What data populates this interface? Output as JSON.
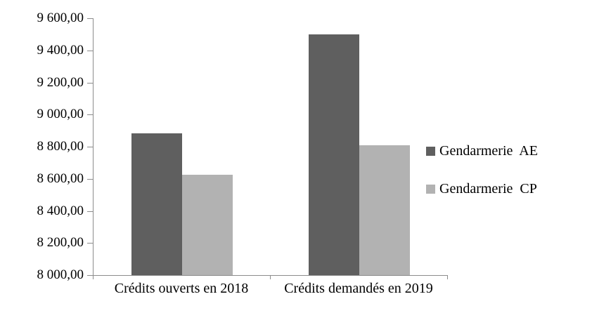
{
  "chart_data": {
    "type": "bar",
    "title": "",
    "categories": [
      "Crédits ouverts en 2018",
      "Crédits demandés en 2019"
    ],
    "series": [
      {
        "name": "Gendarmerie  AE",
        "color": "#5f5f5f",
        "values": [
          8885,
          9500
        ]
      },
      {
        "name": "Gendarmerie  CP",
        "color": "#b2b2b2",
        "values": [
          8625,
          8810
        ]
      }
    ],
    "ylim": [
      8000,
      9600
    ],
    "ytick_step": 200,
    "ytick_labels": [
      "8 000,00",
      "8 200,00",
      "8 400,00",
      "8 600,00",
      "8 800,00",
      "9 000,00",
      "9 200,00",
      "9 400,00",
      "9 600,00"
    ],
    "xlabel": "",
    "ylabel": "",
    "grid": false,
    "legend_position": "right",
    "axis_color": "#8c8c8c",
    "background_color": "#ffffff",
    "text_color": "#000000"
  }
}
